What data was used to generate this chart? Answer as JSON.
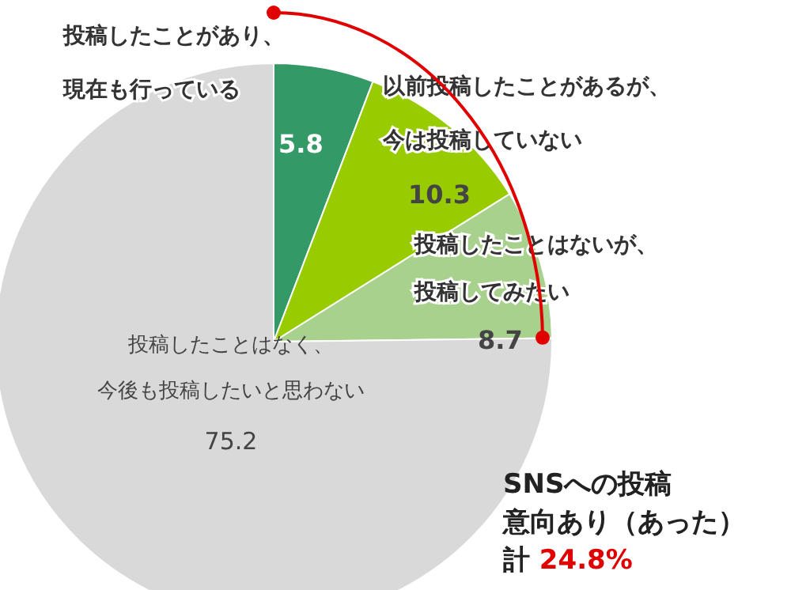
{
  "chart_data": {
    "type": "pie",
    "categories": [
      "投稿したことがあり、現在も行っている",
      "以前投稿したことがあるが、今は投稿していない",
      "投稿したことはないが、投稿してみたい",
      "投稿したことはなく、今後も投稿したいと思わない"
    ],
    "values": [
      5.8,
      10.3,
      8.7,
      75.2
    ],
    "colors": [
      "#339966",
      "#99cc00",
      "#a9d18e",
      "#d9d9d9"
    ],
    "data_labels": true,
    "legend": false,
    "annotations": [
      "SNSへの投稿",
      "意向あり（あった）",
      "計 24.8%"
    ]
  }
}
